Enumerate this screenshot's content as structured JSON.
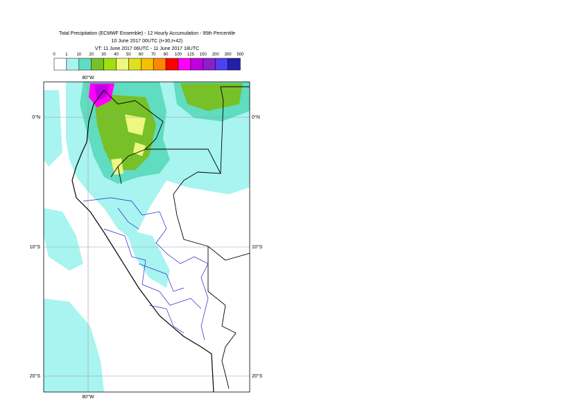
{
  "header": {
    "title": "Total Precipitation (ECMWF Ensemble) - 12 Hourly Accumulation - 95th Percentile",
    "subtitle": "10 June 2017 00UTC (t+30,t+42)",
    "valid_time": "VT: 11 June 2017 06UTC - 11 June 2017 18UTC"
  },
  "legend": {
    "levels": [
      0,
      1,
      10,
      20,
      30,
      40,
      50,
      60,
      70,
      80,
      100,
      125,
      150,
      200,
      300,
      500
    ],
    "colors": [
      "#ffffff",
      "#a8f4f0",
      "#60dcc0",
      "#78c028",
      "#a0e010",
      "#ecf880",
      "#e0e020",
      "#f4c000",
      "#ff8800",
      "#ff0000",
      "#ff00ff",
      "#c000e0",
      "#8a20c8",
      "#5040f0",
      "#2020a8",
      "#100c58"
    ]
  },
  "map": {
    "lon_labels": [
      "80°W"
    ],
    "lat_labels": [
      "0°N",
      "10°S",
      "20°S"
    ]
  }
}
